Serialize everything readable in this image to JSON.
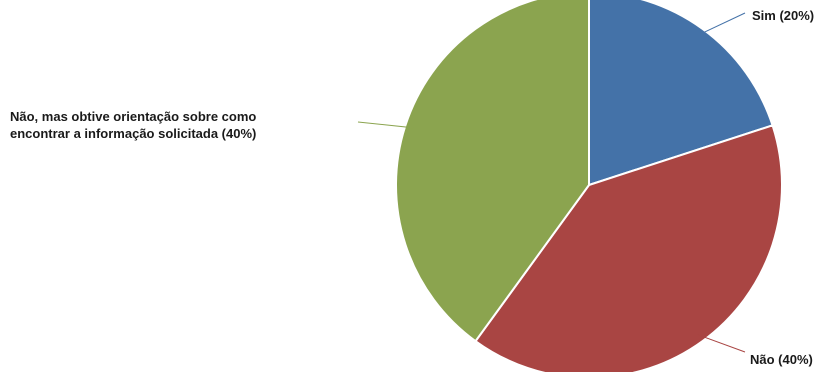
{
  "chart_data": {
    "type": "pie",
    "title": "",
    "slices": [
      {
        "label": "Sim (20%)",
        "value": 20,
        "color": "#4472a8"
      },
      {
        "label": "Não (40%)",
        "value": 40,
        "color": "#a94543"
      },
      {
        "label_lines": [
          "Não, mas obtive orientação sobre como",
          "encontrar a informação solicitada (40%)"
        ],
        "value": 40,
        "color": "#8ba44f"
      }
    ],
    "start_angle_deg": 0,
    "direction": "clockwise",
    "legend": "none",
    "labels": "outside with leader lines"
  }
}
